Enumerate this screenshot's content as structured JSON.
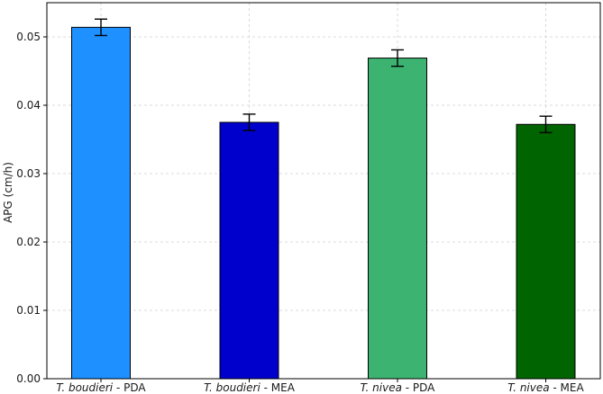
{
  "chart_data": {
    "type": "bar",
    "title": "",
    "xlabel": "",
    "ylabel": "APG (cm/h)",
    "ylim": [
      0,
      0.055
    ],
    "yticks": [
      "0.00",
      "0.01",
      "0.02",
      "0.03",
      "0.04",
      "0.05"
    ],
    "grid": true,
    "legend": "none",
    "categories": [
      {
        "species": "T. boudieri",
        "medium": " - PDA"
      },
      {
        "species": "T. boudieri",
        "medium": " - MEA"
      },
      {
        "species": "T. nivea",
        "medium": " - PDA"
      },
      {
        "species": "T. nivea",
        "medium": " - MEA"
      }
    ],
    "values": [
      0.0514,
      0.0375,
      0.0469,
      0.0372
    ],
    "errors": [
      0.0012,
      0.0012,
      0.0012,
      0.0012
    ],
    "colors": [
      "#1E90FF",
      "#0000CD",
      "#3CB371",
      "#006400"
    ]
  }
}
